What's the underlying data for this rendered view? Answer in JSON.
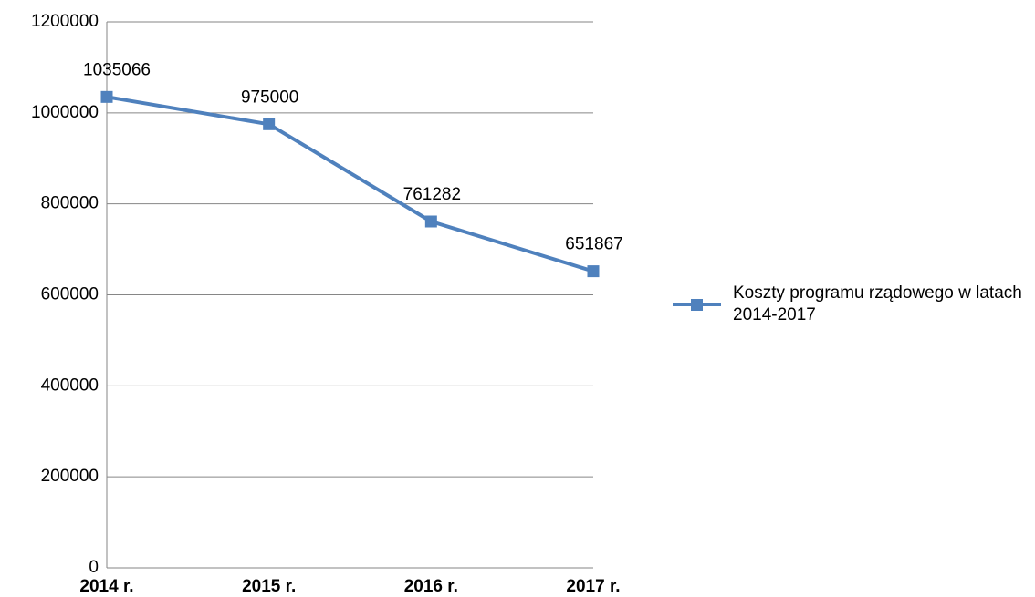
{
  "chart_data": {
    "type": "line",
    "categories": [
      "2014 r.",
      "2015 r.",
      "2016 r.",
      "2017 r."
    ],
    "series": [
      {
        "name": "Koszty programu rządowego w latach 2014-2017",
        "color": "#4f81bd",
        "values": [
          1035066,
          975000,
          761282,
          651867
        ]
      }
    ],
    "ylim": [
      0,
      1200000
    ],
    "yticks": [
      0,
      200000,
      400000,
      600000,
      800000,
      1000000,
      1200000
    ],
    "grid": true,
    "legend": "right"
  }
}
